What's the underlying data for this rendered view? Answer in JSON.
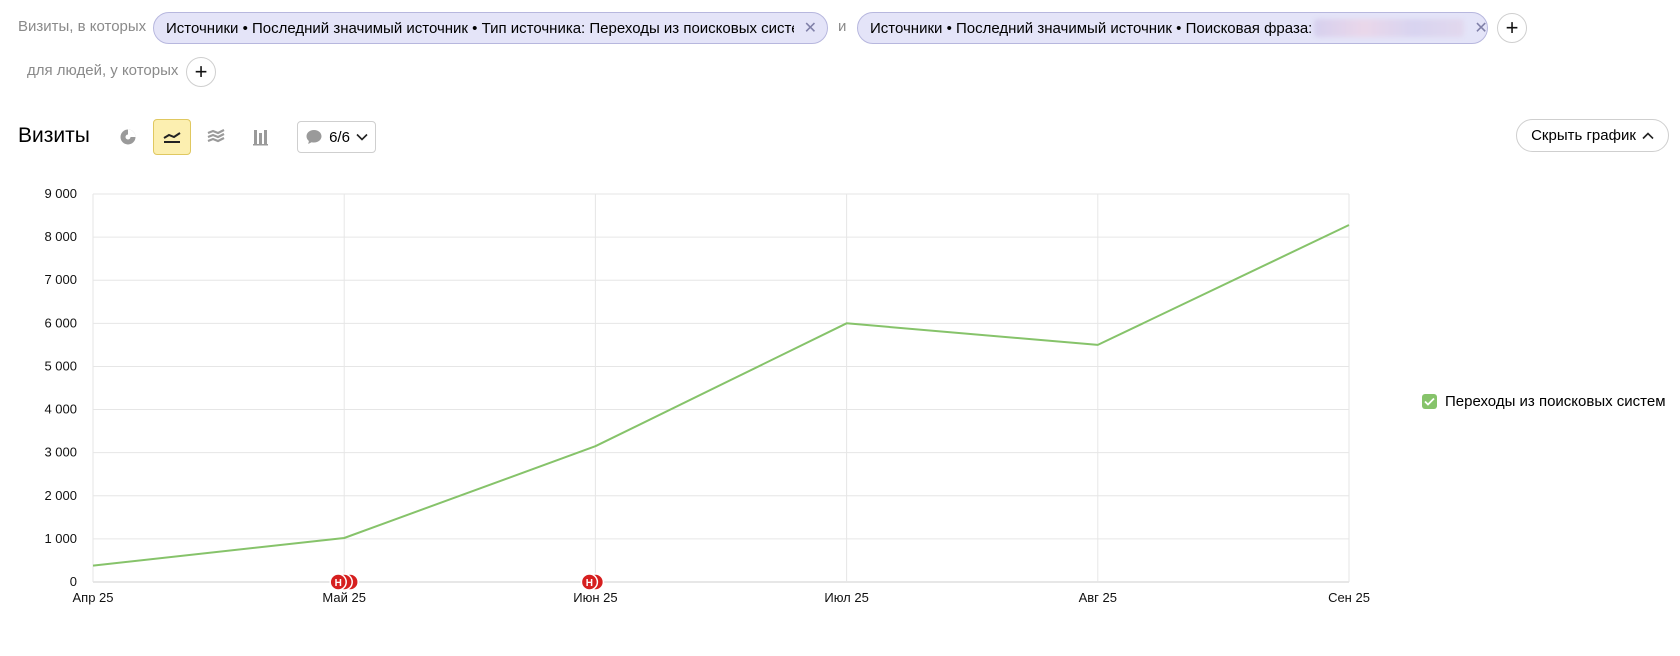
{
  "filters": {
    "visits_label": "Визиты, в которых",
    "people_label": "для людей, у которых",
    "conjunction": "и",
    "chip1_text": "Источники • Последний значимый источник • Тип источника: Переходы из поисковых систем",
    "chip2_text": "Источники • Последний значимый источник • Поисковая фраза:"
  },
  "report": {
    "title": "Визиты",
    "notes_count": "6/6",
    "hide_chart_label": "Скрыть график"
  },
  "colors": {
    "line": "#86c36a",
    "marker": "#d61f1f",
    "accent": "#fcefb0"
  },
  "icons": [
    "pie-chart-icon",
    "line-chart-icon",
    "area-chart-icon",
    "bar-chart-icon",
    "comment-icon",
    "chevron-down-icon",
    "chevron-up-icon",
    "plus-icon",
    "close-icon",
    "check-icon"
  ],
  "chart_data": {
    "type": "line",
    "x": [
      "Апр 25",
      "Май 25",
      "Июн 25",
      "Июл 25",
      "Авг 25",
      "Сен 25"
    ],
    "series": [
      {
        "name": "Переходы из поисковых систем",
        "values": [
          380,
          1020,
          3150,
          6000,
          5500,
          8280
        ]
      }
    ],
    "ylim": [
      0,
      9000
    ],
    "yticks": [
      {
        "value": 0,
        "label": "0"
      },
      {
        "value": 1000,
        "label": "1 000"
      },
      {
        "value": 2000,
        "label": "2 000"
      },
      {
        "value": 3000,
        "label": "3 000"
      },
      {
        "value": 4000,
        "label": "4 000"
      },
      {
        "value": 5000,
        "label": "5 000"
      },
      {
        "value": 6000,
        "label": "6 000"
      },
      {
        "value": 7000,
        "label": "7 000"
      },
      {
        "value": 8000,
        "label": "8 000"
      },
      {
        "value": 9000,
        "label": "9 000"
      }
    ],
    "grid": true,
    "legend": "right",
    "annotations": [
      {
        "x": "Май 25",
        "label": "Н",
        "count": 3
      },
      {
        "x": "Июн 25",
        "label": "Н",
        "count": 2
      }
    ]
  }
}
